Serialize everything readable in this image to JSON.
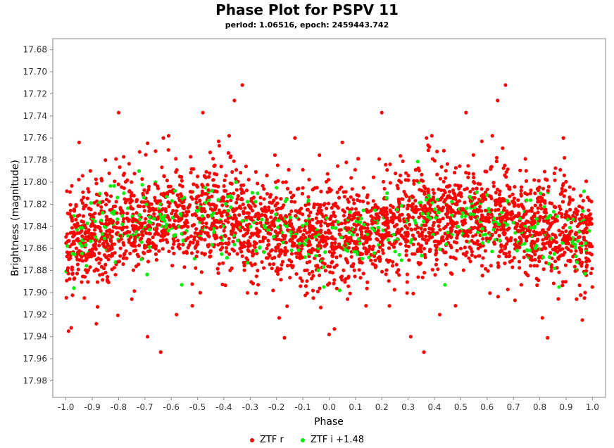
{
  "chart_data": {
    "type": "scatter",
    "title": "Phase Plot for PSPV 11",
    "subtitle": "period: 1.06516, epoch: 2459443.742",
    "xlabel": "Phase",
    "ylabel": "Brightness (magnitude)",
    "xlim": [
      -1.05,
      1.05
    ],
    "ylim": [
      17.67,
      17.995
    ],
    "y_inverted": true,
    "x_ticks": [
      "-1.0",
      "-0.9",
      "-0.8",
      "-0.7",
      "-0.6",
      "-0.5",
      "-0.4",
      "-0.3",
      "-0.2",
      "-0.1",
      "0.0",
      "0.1",
      "0.2",
      "0.3",
      "0.4",
      "0.5",
      "0.6",
      "0.7",
      "0.8",
      "0.9",
      "1.0"
    ],
    "y_ticks": [
      "17.68",
      "17.70",
      "17.72",
      "17.74",
      "17.76",
      "17.78",
      "17.80",
      "17.82",
      "17.84",
      "17.86",
      "17.88",
      "17.90",
      "17.92",
      "17.94",
      "17.96",
      "17.98"
    ],
    "grid": false,
    "legend_position": "bottom",
    "series": [
      {
        "name": "ZTF r",
        "color": "#ff0000",
        "points": [
          [
            -0.99,
            17.935
          ],
          [
            -0.98,
            17.932
          ],
          [
            -0.95,
            17.764
          ],
          [
            -0.85,
            17.78
          ],
          [
            -0.8,
            17.737
          ],
          [
            -0.81,
            17.779
          ],
          [
            -0.69,
            17.94
          ],
          [
            -0.64,
            17.954
          ],
          [
            -0.63,
            17.76
          ],
          [
            -0.61,
            17.758
          ],
          [
            -0.48,
            17.737
          ],
          [
            -0.36,
            17.726
          ],
          [
            -0.33,
            17.712
          ],
          [
            -0.42,
            17.763
          ],
          [
            -0.38,
            17.758
          ],
          [
            -0.19,
            17.923
          ],
          [
            -0.17,
            17.941
          ],
          [
            -0.13,
            17.76
          ],
          [
            0.0,
            17.938
          ],
          [
            0.02,
            17.933
          ],
          [
            0.05,
            17.764
          ],
          [
            0.2,
            17.737
          ],
          [
            0.19,
            17.779
          ],
          [
            0.31,
            17.94
          ],
          [
            0.36,
            17.954
          ],
          [
            0.37,
            17.76
          ],
          [
            0.39,
            17.758
          ],
          [
            0.52,
            17.737
          ],
          [
            0.64,
            17.726
          ],
          [
            0.67,
            17.712
          ],
          [
            0.58,
            17.763
          ],
          [
            0.62,
            17.758
          ],
          [
            0.81,
            17.923
          ],
          [
            0.83,
            17.941
          ],
          [
            0.89,
            17.76
          ],
          [
            -0.93,
            17.905
          ],
          [
            -0.88,
            17.913
          ],
          [
            -0.75,
            17.906
          ],
          [
            -0.58,
            17.92
          ],
          [
            -0.52,
            17.912
          ],
          [
            -0.06,
            17.905
          ],
          [
            0.07,
            17.906
          ],
          [
            0.14,
            17.912
          ],
          [
            0.42,
            17.92
          ],
          [
            0.48,
            17.912
          ],
          [
            0.94,
            17.906
          ],
          [
            0.97,
            17.905
          ],
          [
            1.0,
            17.895
          ],
          [
            -0.27,
            17.893
          ],
          [
            0.73,
            17.893
          ]
        ]
      },
      {
        "name": "ZTF i +1.48",
        "color": "#00ee00",
        "points": [
          [
            -0.97,
            17.896
          ],
          [
            -0.56,
            17.893
          ],
          [
            -0.02,
            17.895
          ],
          [
            0.04,
            17.898
          ],
          [
            0.44,
            17.893
          ],
          [
            -0.78,
            17.81
          ],
          [
            -0.66,
            17.8
          ],
          [
            -0.2,
            17.805
          ],
          [
            0.22,
            17.81
          ],
          [
            0.34,
            17.8
          ],
          [
            0.8,
            17.805
          ],
          [
            -0.45,
            17.83
          ],
          [
            0.55,
            17.83
          ],
          [
            -0.1,
            17.855
          ],
          [
            0.9,
            17.855
          ]
        ]
      }
    ]
  }
}
